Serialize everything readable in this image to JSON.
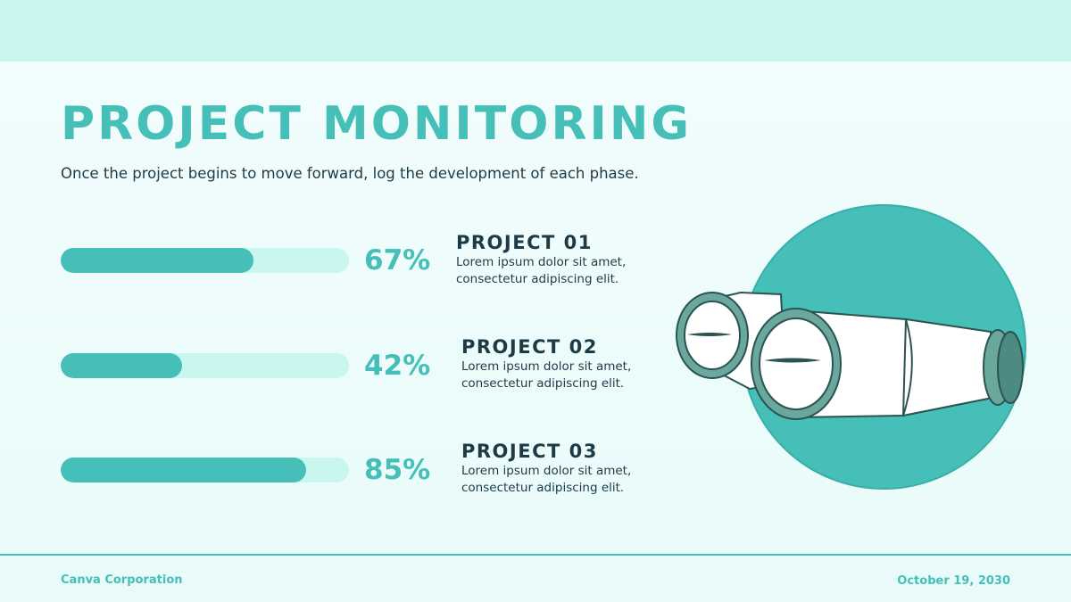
{
  "slide": {
    "title": "PROJECT MONITORING",
    "subtitle": "Once the project begins to move forward, log the development of each phase."
  },
  "projects": [
    {
      "name": "PROJECT 01",
      "progress_percent": 67,
      "progress_label": "67%",
      "description_line1": "Lorem ipsum dolor sit amet,",
      "description_line2": "consectetur adipiscing elit."
    },
    {
      "name": "PROJECT 02",
      "progress_percent": 42,
      "progress_label": "42%",
      "description_line1": "Lorem ipsum dolor sit amet,",
      "description_line2": "consectetur adipiscing elit."
    },
    {
      "name": "PROJECT 03",
      "progress_percent": 85,
      "progress_label": "85%",
      "description_line1": "Lorem ipsum dolor sit amet,",
      "description_line2": "consectetur adipiscing elit."
    }
  ],
  "illustration": {
    "icon": "binoculars-icon"
  },
  "footer": {
    "company": "Canva Corporation",
    "date": "October 19, 2030"
  },
  "colors": {
    "accent": "#46bfb9",
    "light_accent": "#c9f6ee",
    "dark_text": "#1d3b46",
    "background": "#f3fdfd"
  }
}
